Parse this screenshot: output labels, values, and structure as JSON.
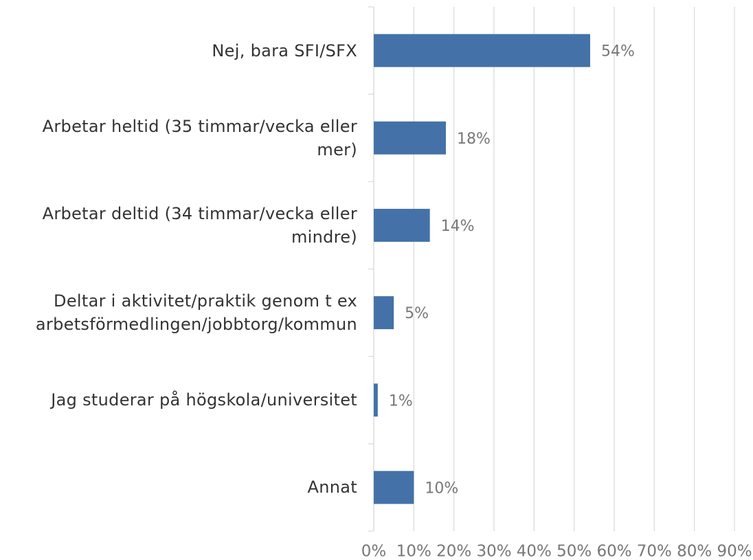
{
  "chart_data": {
    "type": "bar",
    "orientation": "horizontal",
    "categories": [
      "Nej, bara SFI/SFX",
      "Arbetar heltid (35 timmar/vecka eller mer)",
      "Arbetar deltid (34 timmar/vecka eller mindre)",
      "Deltar i aktivitet/praktik genom t ex arbetsförmedlingen/jobbtorg/kommun",
      "Jag studerar på högskola/universitet",
      "Annat"
    ],
    "values": [
      54,
      18,
      14,
      5,
      1,
      10
    ],
    "value_labels": [
      "54%",
      "18%",
      "14%",
      "5%",
      "1%",
      "10%"
    ],
    "color": "#4472a8",
    "xlim": [
      0,
      90
    ],
    "xticks": [
      {
        "value": 0,
        "label": "0%"
      },
      {
        "value": 10,
        "label": "10%"
      },
      {
        "value": 20,
        "label": "20%"
      },
      {
        "value": 30,
        "label": "30%"
      },
      {
        "value": 40,
        "label": "40%"
      },
      {
        "value": 50,
        "label": "50%"
      },
      {
        "value": 60,
        "label": "60%"
      },
      {
        "value": 70,
        "label": "70%"
      },
      {
        "value": 80,
        "label": "80%"
      },
      {
        "value": 90,
        "label": "90%"
      }
    ],
    "grid": true
  }
}
